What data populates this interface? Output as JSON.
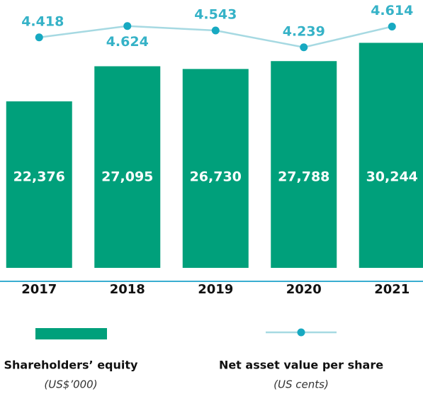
{
  "chart_data": {
    "type": "bar",
    "categories": [
      "2017",
      "2018",
      "2019",
      "2020",
      "2021"
    ],
    "series": [
      {
        "name": "Shareholders’ equity",
        "unit": "(US$’000)",
        "type": "bar",
        "color": "#00a07b",
        "values": [
          22376,
          27095,
          26730,
          27788,
          30244
        ],
        "value_labels": [
          "22,376",
          "27,095",
          "26,730",
          "27,788",
          "30,244"
        ]
      },
      {
        "name": "Net asset value per share",
        "unit": "(US cents)",
        "type": "line",
        "axis": "y2",
        "color": "#a6d9e2",
        "marker_color": "#17a9c1",
        "values": [
          4.418,
          4.624,
          4.543,
          4.239,
          4.614
        ]
      }
    ],
    "ylim": [
      0,
      34000
    ],
    "y2lim": [
      3.8,
      4.8
    ]
  }
}
